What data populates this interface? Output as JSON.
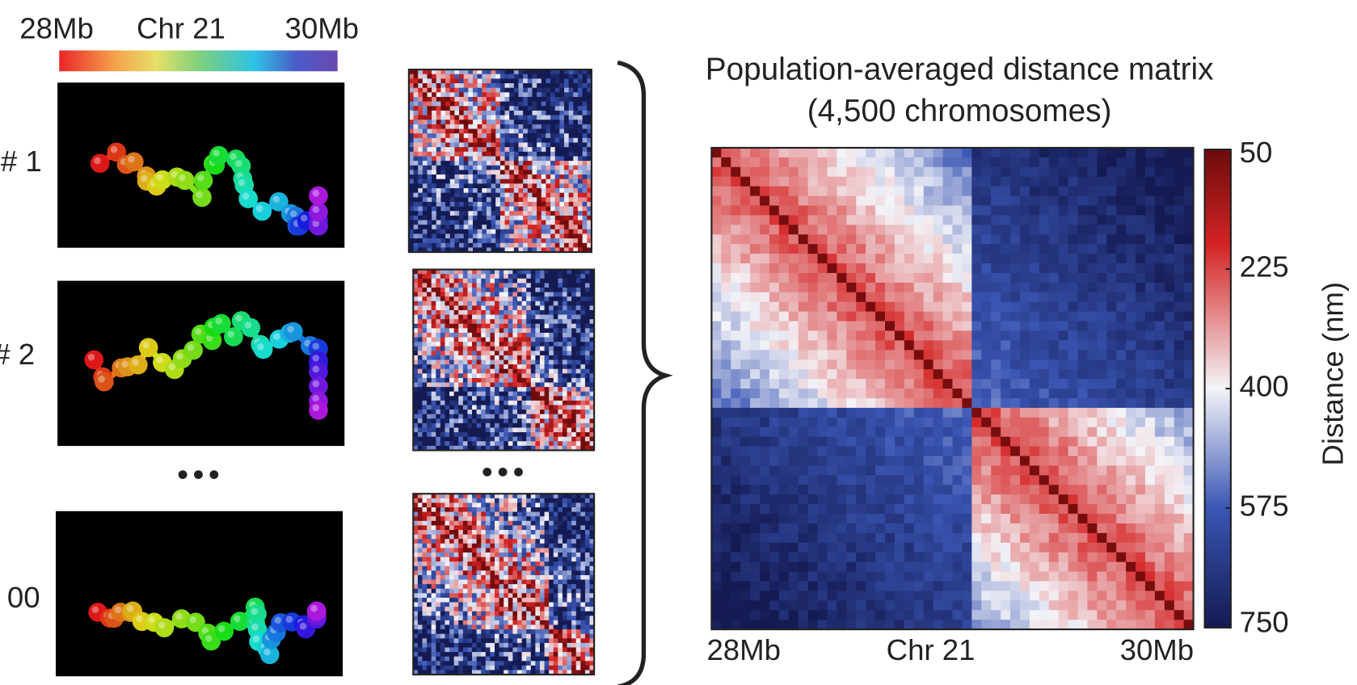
{
  "genome_bar": {
    "start": "28Mb",
    "label": "Chr 21",
    "end": "30Mb"
  },
  "rows": [
    {
      "label": "# 1"
    },
    {
      "label": "# 2"
    },
    {
      "label": "00"
    }
  ],
  "matrix": {
    "title": "Population-averaged distance matrix",
    "subtitle": "(4,500 chromosomes)",
    "x_start": "28Mb",
    "x_mid": "Chr 21",
    "x_end": "30Mb"
  },
  "colorbar": {
    "label": "Distance (nm)",
    "lim": [
      50,
      750
    ],
    "ticks": [
      50,
      225,
      400,
      575,
      750
    ]
  }
}
